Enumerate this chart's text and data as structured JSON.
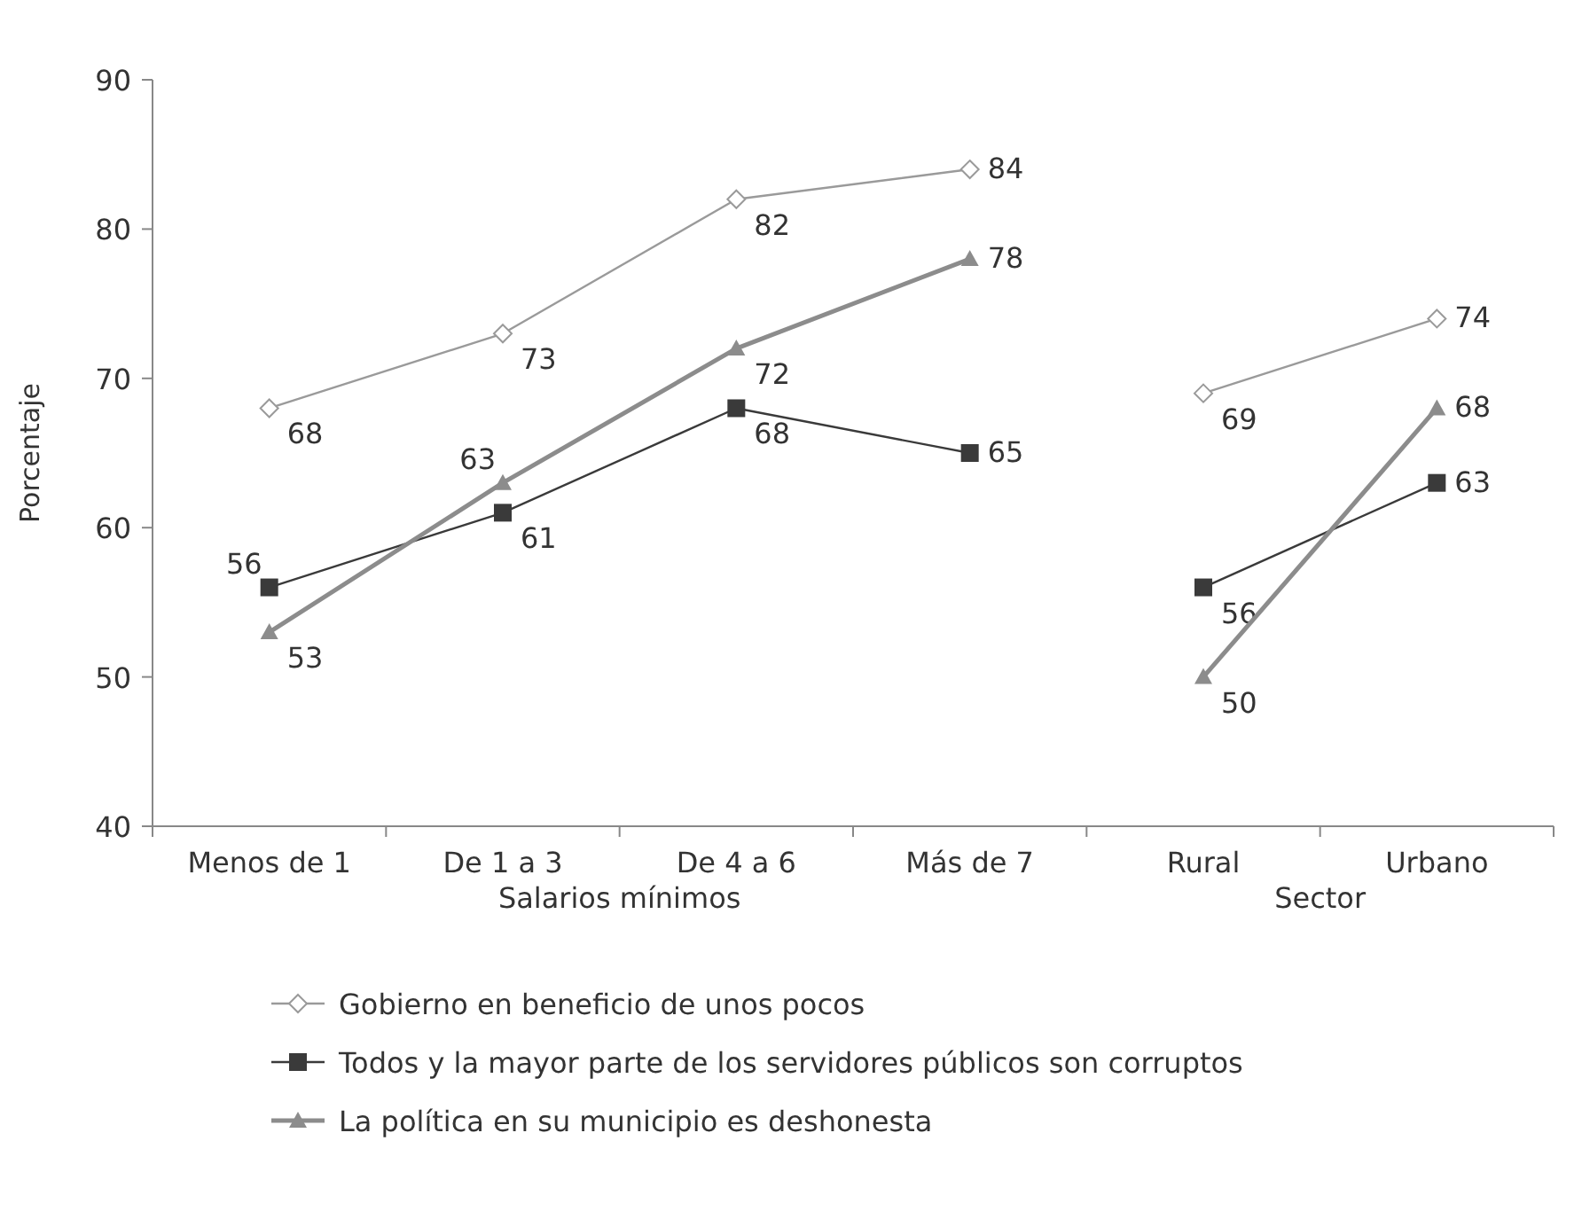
{
  "chart_data": {
    "type": "line",
    "ylabel": "Porcentaje",
    "categories": [
      "Menos de 1",
      "De 1 a 3",
      "De 4 a 6",
      "Más de 7",
      "Rural",
      "Urbano"
    ],
    "annotations": [
      "Salarios mínimos",
      "Sector"
    ],
    "ylim": [
      40,
      90
    ],
    "yticks": [
      40,
      50,
      60,
      70,
      80,
      90
    ],
    "grid": false,
    "legend": "bottom",
    "data_labels": true,
    "series": [
      {
        "name": "Gobierno en beneficio de unos pocos",
        "color": "#9a9a9a",
        "marker": "diamond",
        "values": [
          68,
          73,
          82,
          84,
          null,
          null
        ]
      },
      {
        "color": "#9a9a9a",
        "marker": "diamond",
        "values": [
          null,
          null,
          null,
          null,
          69,
          74
        ]
      },
      {
        "name": "Todos y la mayor parte de los servidores públicos son corruptos",
        "color": "#3a3a3a",
        "marker": "square",
        "values": [
          56,
          61,
          68,
          65,
          null,
          null
        ]
      },
      {
        "color": "#3a3a3a",
        "marker": "square",
        "values": [
          null,
          null,
          null,
          null,
          56,
          63
        ]
      },
      {
        "name": "La política en su municipio es deshonesta",
        "color": "#8c8c8c",
        "marker": "triangle",
        "values": [
          53,
          63,
          72,
          78,
          null,
          null
        ]
      },
      {
        "color": "#8c8c8c",
        "marker": "triangle",
        "values": [
          null,
          null,
          null,
          null,
          50,
          68
        ]
      }
    ]
  }
}
